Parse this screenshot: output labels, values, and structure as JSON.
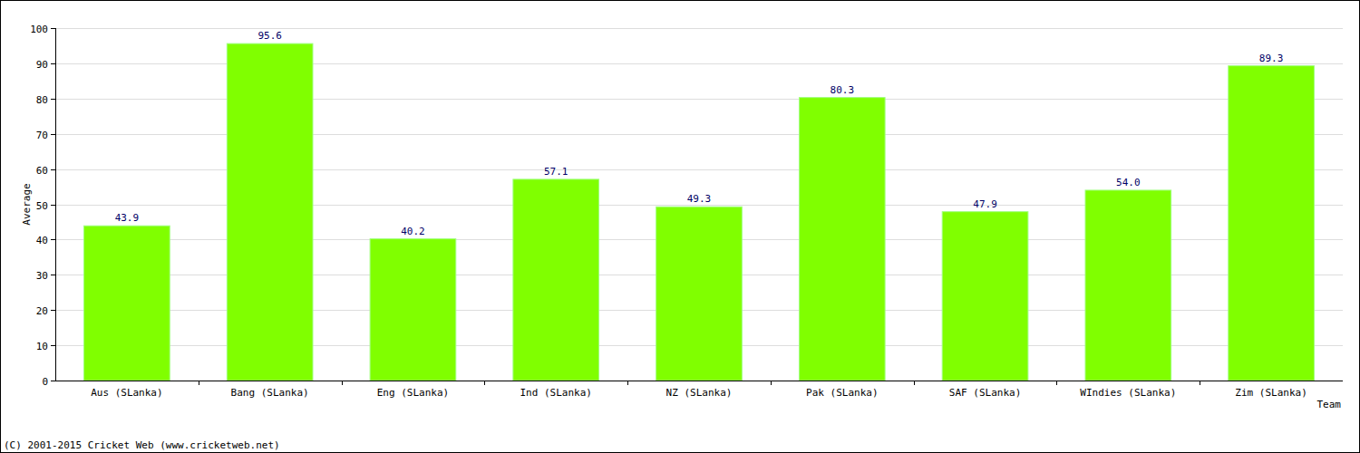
{
  "chart_data": {
    "type": "bar",
    "categories": [
      "Aus (SLanka)",
      "Bang (SLanka)",
      "Eng (SLanka)",
      "Ind (SLanka)",
      "NZ (SLanka)",
      "Pak (SLanka)",
      "SAF (SLanka)",
      "WIndies (SLanka)",
      "Zim (SLanka)"
    ],
    "values": [
      43.9,
      95.6,
      40.2,
      57.1,
      49.3,
      80.3,
      47.9,
      54.0,
      89.3
    ],
    "value_labels": [
      "43.9",
      "95.6",
      "40.2",
      "57.1",
      "49.3",
      "80.3",
      "47.9",
      "54.0",
      "89.3"
    ],
    "color": "#80ff00",
    "y_label": "Average",
    "x_label": "Team",
    "annotations": [
      "(C) 2001-2015 Cricket Web (www.cricketweb.net)"
    ],
    "ylim": [
      0,
      100
    ],
    "yticks": [
      0,
      10,
      20,
      30,
      40,
      50,
      60,
      70,
      80,
      90,
      100
    ],
    "grid": true,
    "data_labels": true
  }
}
